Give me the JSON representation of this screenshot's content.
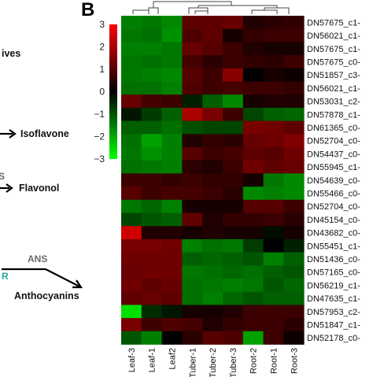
{
  "left_panel": {
    "texts": [
      "ives",
      "Isoflavone",
      "S",
      "Flavonol",
      "ANS",
      "R",
      "Anthocyanins"
    ]
  },
  "panel_label": "B",
  "colors": {
    "high": "#ff0000",
    "mid": "#000000",
    "low": "#00ff00",
    "arrow": "#000000",
    "enzyme_gray": "#6a6a6a",
    "enzyme_teal": "#2aa7a7"
  },
  "chart_data": {
    "type": "heatmap",
    "columns": [
      "Leaf-3",
      "Leaf-1",
      "Leaf2",
      "Tuber-1",
      "Tuber-2",
      "Tuber-3",
      "Root-2",
      "Root-1",
      "Root-3"
    ],
    "rows": [
      "DN57675_c1-",
      "DN56021_c1-",
      "DN57675_c1-",
      "DN57675_c0-",
      "DN51857_c3-",
      "DN56021_c1-",
      "DN53031_c2-",
      "DN57878_c1-",
      "DN61365_c0-",
      "DN52704_c0-",
      "DN54437_c0-",
      "DN55945_c1-",
      "DN54639_c0-",
      "DN55466_c0-",
      "DN52704_c0-",
      "DN45154_c0-",
      "DN43682_c0-",
      "DN55451_c1-",
      "DN51436_c0-",
      "DN57165_c0-",
      "DN56219_c1-",
      "DN47635_c1-",
      "DN57953_c2-",
      "DN51847_c1-",
      "DN52178_c0-"
    ],
    "values": [
      [
        -1.4,
        -1.3,
        -1.5,
        1.0,
        1.0,
        1.1,
        0.3,
        0.4,
        0.5
      ],
      [
        -1.3,
        -1.2,
        -1.6,
        0.8,
        1.0,
        0.2,
        0.5,
        0.6,
        0.6
      ],
      [
        -1.4,
        -1.4,
        -1.3,
        1.1,
        0.9,
        0.6,
        0.3,
        0.2,
        0.2
      ],
      [
        -1.3,
        -1.2,
        -1.3,
        0.7,
        0.4,
        0.6,
        0.5,
        0.4,
        0.6
      ],
      [
        -1.3,
        -1.4,
        -1.5,
        0.9,
        0.6,
        1.5,
        0.0,
        0.2,
        0.1
      ],
      [
        -1.2,
        -1.2,
        -1.4,
        0.8,
        0.6,
        0.7,
        0.6,
        0.6,
        0.5
      ],
      [
        1.1,
        0.7,
        0.6,
        -0.3,
        -1.0,
        -1.5,
        0.2,
        0.3,
        0.3
      ],
      [
        -0.2,
        -0.6,
        -1.0,
        1.9,
        1.3,
        0.6,
        -0.7,
        -1.0,
        -1.1
      ],
      [
        -1.0,
        -1.0,
        -1.2,
        -0.8,
        -0.7,
        -0.7,
        1.3,
        1.2,
        1.0
      ],
      [
        -1.2,
        -1.8,
        -1.4,
        0.3,
        0.5,
        0.4,
        1.1,
        1.2,
        1.4
      ],
      [
        -1.3,
        -1.6,
        -1.4,
        0.9,
        0.6,
        0.7,
        1.0,
        0.9,
        1.2
      ],
      [
        -1.2,
        -1.3,
        -1.4,
        0.4,
        0.3,
        0.6,
        1.2,
        1.0,
        1.1
      ],
      [
        0.6,
        0.6,
        0.5,
        0.6,
        0.5,
        0.5,
        0.2,
        -1.3,
        -1.5
      ],
      [
        0.9,
        0.6,
        0.7,
        0.7,
        0.6,
        0.4,
        -1.5,
        -1.4,
        -1.5
      ],
      [
        -1.3,
        -1.1,
        -1.4,
        0.2,
        0.2,
        0.2,
        0.9,
        0.9,
        0.6
      ],
      [
        -0.7,
        -0.9,
        -1.0,
        1.0,
        0.3,
        0.5,
        0.5,
        0.6,
        0.4
      ],
      [
        2.4,
        0.3,
        0.3,
        0.2,
        0.3,
        0.2,
        0.2,
        -0.1,
        0.2
      ],
      [
        1.3,
        1.3,
        1.2,
        -1.4,
        -1.2,
        -1.3,
        -0.6,
        0.0,
        -0.3
      ],
      [
        1.2,
        1.2,
        1.2,
        -1.0,
        -1.1,
        -1.0,
        -0.9,
        -1.4,
        -1.0
      ],
      [
        1.1,
        1.2,
        1.2,
        -1.3,
        -1.2,
        -1.1,
        -1.2,
        -1.0,
        -0.9
      ],
      [
        1.2,
        1.0,
        1.1,
        -1.2,
        -1.3,
        -1.4,
        -1.3,
        -0.9,
        -1.1
      ],
      [
        1.0,
        1.1,
        1.0,
        -1.2,
        -1.4,
        -1.1,
        -0.9,
        -1.0,
        -1.0
      ],
      [
        -2.6,
        -0.4,
        -0.2,
        0.2,
        0.2,
        0.3,
        0.6,
        0.6,
        0.6
      ],
      [
        1.3,
        0.6,
        0.8,
        0.7,
        0.3,
        0.5,
        0.6,
        0.6,
        0.4
      ],
      [
        -0.9,
        -1.4,
        0.0,
        0.4,
        0.9,
        0.8,
        -1.8,
        0.6,
        0.1
      ]
    ],
    "color_scale": {
      "min": -3,
      "max": 3,
      "ticks": [
        "3",
        "2",
        "1",
        "0",
        "−1",
        "−2",
        "−3"
      ]
    }
  }
}
